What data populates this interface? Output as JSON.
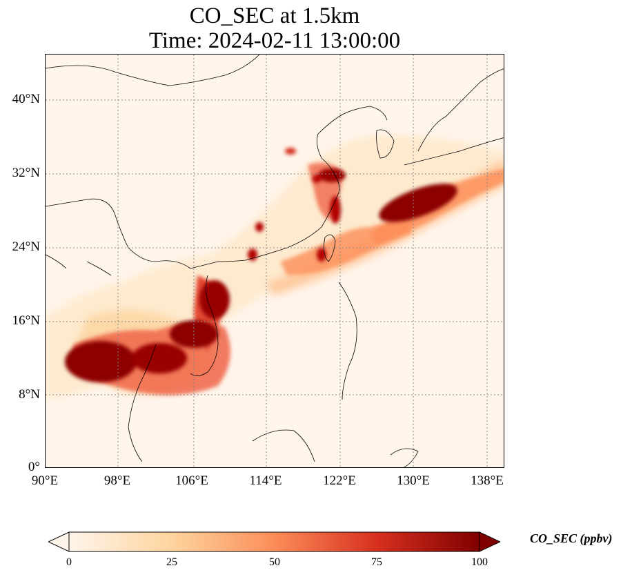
{
  "figure": {
    "title_line1": "CO_SEC at 1.5km",
    "title_line2": "Time: 2024-02-11 13:00:00"
  },
  "map": {
    "lat_ticks": [
      "40°N",
      "32°N",
      "24°N",
      "16°N",
      "8°N",
      "0°"
    ],
    "lon_ticks": [
      "90°E",
      "98°E",
      "106°E",
      "114°E",
      "122°E",
      "130°E",
      "138°E"
    ],
    "gridlines": "dotted",
    "colormap": "OrRd"
  },
  "colorbar": {
    "label": "CO_SEC (ppbv)",
    "ticks": [
      "0",
      "25",
      "50",
      "75",
      "100"
    ],
    "range": [
      0,
      100
    ],
    "extend": "both",
    "colors": [
      "#fff5eb",
      "#fdd49e",
      "#fc8d59",
      "#d7301f",
      "#7f0000"
    ]
  }
}
